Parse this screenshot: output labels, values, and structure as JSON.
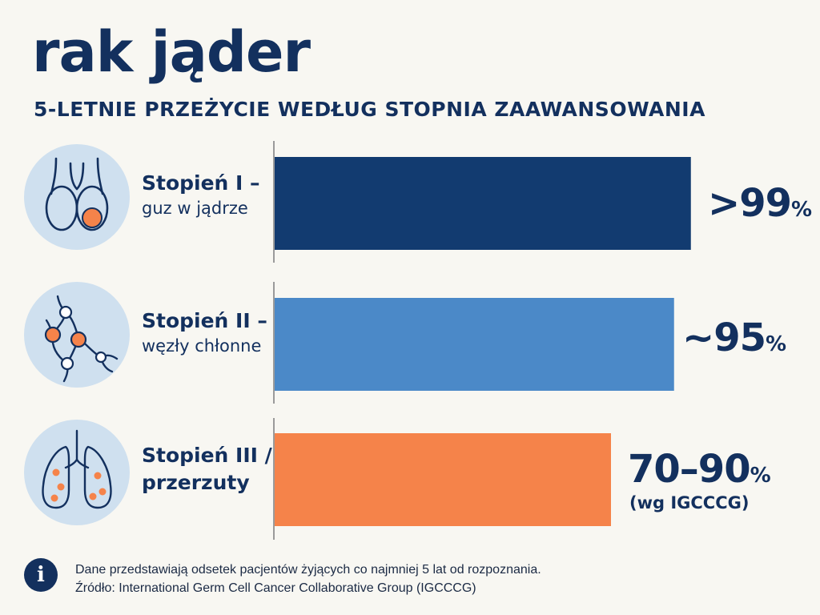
{
  "title": "rak jąder",
  "subtitle": "5-LETNIE PRZEŻYCIE WEDŁUG STOPNIA ZAAWANSOWANIA",
  "stages": [
    {
      "line1": "Stopień I –",
      "line2": "guz w jądrze",
      "icon": "testicle-icon"
    },
    {
      "line1": "Stopień II –",
      "line2": "węzły chłonne",
      "icon": "lymph-nodes-icon"
    },
    {
      "line1": "Stopień III /",
      "line2": "przerzuty",
      "icon": "lungs-icon"
    }
  ],
  "values": [
    {
      "text": ">99",
      "unit": "%"
    },
    {
      "text": "~95",
      "unit": "%"
    },
    {
      "text": "70–90",
      "unit": "%",
      "note": "(wg IGCCCG)"
    }
  ],
  "chart_data": {
    "type": "bar",
    "orientation": "horizontal",
    "categories": [
      "Stopień I – guz w jądrze",
      "Stopień II – węzły chłonne",
      "Stopień III / przerzuty"
    ],
    "values": [
      99,
      95,
      80
    ],
    "value_labels": [
      ">99%",
      "~95%",
      "70–90%"
    ],
    "colors": [
      "#123b70",
      "#4b89c8",
      "#f5834a"
    ],
    "xlim": [
      0,
      100
    ],
    "grid": false,
    "legend": "none"
  },
  "footnote": {
    "line1": "Dane przedstawiają odsetek pacjentów żyjących co najmniej 5 lat od rozpoznania.",
    "line2": "Źródło: International Germ Cell Cancer Collaborative Group (IGCCCG)"
  },
  "colors": {
    "navy": "#13305e",
    "icon_bg": "#cfe0ef",
    "accent_orange": "#f5834a"
  }
}
